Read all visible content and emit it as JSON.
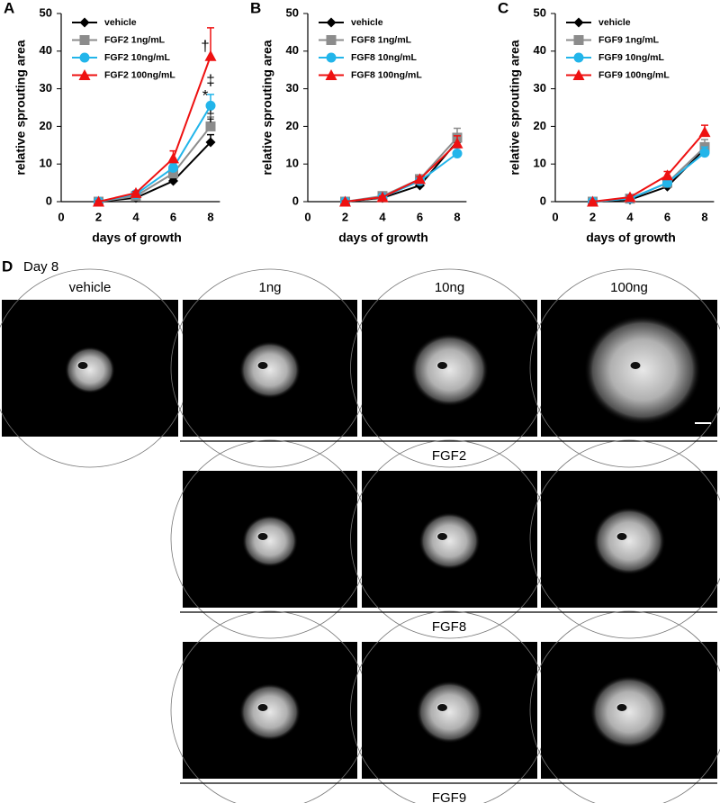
{
  "chart_data": [
    {
      "type": "line",
      "panel": "A",
      "x_label": "days of growth",
      "y_label": "relative sprouting area",
      "x": [
        2,
        4,
        6,
        8
      ],
      "xlim": [
        0,
        8.5
      ],
      "xticks": [
        0,
        2,
        4,
        6,
        8
      ],
      "ylim": [
        0,
        50
      ],
      "yticks": [
        0,
        10,
        20,
        30,
        40,
        50
      ],
      "legend": "top-left",
      "series": [
        {
          "name": "vehicle",
          "color": "#000000",
          "marker": "diamond",
          "values": [
            0,
            1,
            5.5,
            15.8
          ],
          "errors": [
            0.2,
            0.3,
            0.5,
            2
          ]
        },
        {
          "name": "FGF2 1ng/mL",
          "color": "#8c8c8c",
          "marker": "square",
          "values": [
            0,
            1.5,
            7.5,
            20
          ],
          "errors": [
            0.2,
            0.3,
            0.8,
            2.5
          ]
        },
        {
          "name": "FGF2 10ng/mL",
          "color": "#22b5ea",
          "marker": "circle",
          "values": [
            0,
            2,
            9,
            25.5
          ],
          "errors": [
            0.2,
            0.3,
            1,
            3
          ]
        },
        {
          "name": "FGF2 100ng/mL",
          "color": "#ee1111",
          "marker": "triangle",
          "values": [
            0,
            2.3,
            11.5,
            38.7
          ],
          "errors": [
            0.2,
            0.4,
            2,
            7.5
          ]
        }
      ],
      "annotations": [
        "†",
        "*",
        "‡",
        "‡"
      ]
    },
    {
      "type": "line",
      "panel": "B",
      "x_label": "days of growth",
      "y_label": "relative sprouting area",
      "x": [
        2,
        4,
        6,
        8
      ],
      "xlim": [
        0,
        8.5
      ],
      "xticks": [
        0,
        2,
        4,
        6,
        8
      ],
      "ylim": [
        0,
        50
      ],
      "yticks": [
        0,
        10,
        20,
        30,
        40,
        50
      ],
      "legend": "top-left",
      "series": [
        {
          "name": "vehicle",
          "color": "#000000",
          "marker": "diamond",
          "values": [
            0,
            1,
            4.3,
            16
          ],
          "errors": [
            0.2,
            0.3,
            0.5,
            1.5
          ]
        },
        {
          "name": "FGF8 1ng/mL",
          "color": "#8c8c8c",
          "marker": "square",
          "values": [
            0,
            1.5,
            6,
            17
          ],
          "errors": [
            0.2,
            0.3,
            0.6,
            2.5
          ]
        },
        {
          "name": "FGF8 10ng/mL",
          "color": "#22b5ea",
          "marker": "circle",
          "values": [
            0,
            1.2,
            5.5,
            12.8
          ],
          "errors": [
            0.2,
            0.3,
            0.6,
            1.5
          ]
        },
        {
          "name": "FGF8 100ng/mL",
          "color": "#ee1111",
          "marker": "triangle",
          "values": [
            0,
            1.2,
            6,
            15.5
          ],
          "errors": [
            0.2,
            0.3,
            0.6,
            2
          ]
        }
      ]
    },
    {
      "type": "line",
      "panel": "C",
      "x_label": "days of growth",
      "y_label": "relative sprouting area",
      "x": [
        2,
        4,
        6,
        8
      ],
      "xlim": [
        0,
        8.5
      ],
      "xticks": [
        0,
        2,
        4,
        6,
        8
      ],
      "ylim": [
        0,
        50
      ],
      "yticks": [
        0,
        10,
        20,
        30,
        40,
        50
      ],
      "legend": "top-left",
      "series": [
        {
          "name": "vehicle",
          "color": "#000000",
          "marker": "diamond",
          "values": [
            0,
            0.5,
            4,
            14
          ],
          "errors": [
            0.2,
            0.3,
            0.8,
            1.5
          ]
        },
        {
          "name": "FGF9 1ng/mL",
          "color": "#8c8c8c",
          "marker": "square",
          "values": [
            0,
            0.8,
            5,
            14.5
          ],
          "errors": [
            0.2,
            0.3,
            0.8,
            2
          ]
        },
        {
          "name": "FGF9 10ng/mL",
          "color": "#22b5ea",
          "marker": "circle",
          "values": [
            0,
            0.8,
            5,
            13
          ],
          "errors": [
            0.2,
            0.3,
            0.8,
            1.5
          ]
        },
        {
          "name": "FGF9 100ng/mL",
          "color": "#ee1111",
          "marker": "triangle",
          "values": [
            0,
            1.2,
            7,
            18.5
          ],
          "errors": [
            0.2,
            0.4,
            1,
            1.8
          ]
        }
      ]
    }
  ],
  "panel_d": {
    "panel": "D",
    "title": "Day 8",
    "columns": [
      "vehicle",
      "1ng",
      "10ng",
      "100ng"
    ],
    "rows": [
      "FGF2",
      "FGF8",
      "FGF9"
    ]
  }
}
